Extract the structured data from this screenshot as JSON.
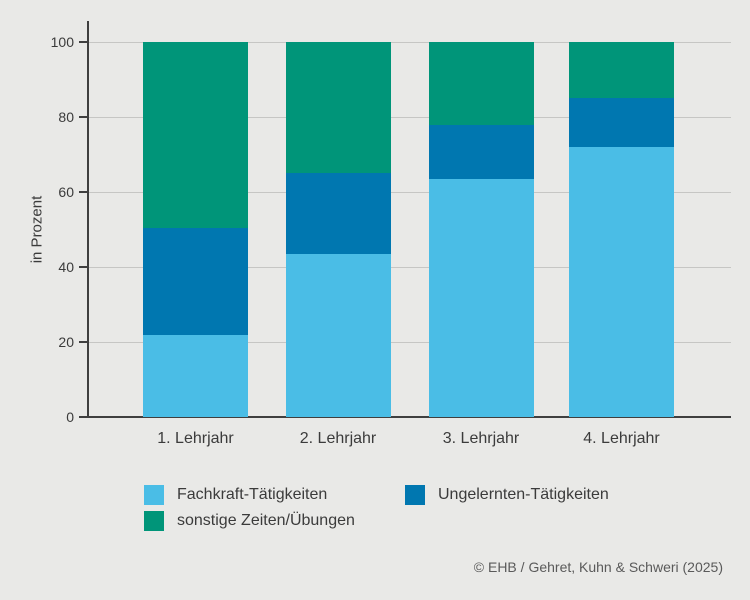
{
  "chart_data": {
    "type": "bar",
    "subtype": "stacked-vertical",
    "categories": [
      "1. Lehrjahr",
      "2. Lehrjahr",
      "3. Lehrjahr",
      "4. Lehrjahr"
    ],
    "series": [
      {
        "name": "Fachkraft-Tätigkeiten",
        "color": "#4abde6",
        "values": [
          22,
          43.5,
          63.5,
          72
        ]
      },
      {
        "name": "Ungelernten-Tätigkeiten",
        "color": "#0077b0",
        "values": [
          28.5,
          21.5,
          14.5,
          13
        ]
      },
      {
        "name": "sonstige Zeiten/Übungen",
        "color": "#009579",
        "values": [
          49.5,
          35,
          22,
          15
        ]
      }
    ],
    "title": "",
    "xlabel": "",
    "ylabel": "in Prozent",
    "ylim": [
      0,
      100
    ],
    "yticks": [
      0,
      20,
      40,
      60,
      80,
      100
    ],
    "grid": true,
    "legend_position": "bottom-left",
    "legend_order": [
      "Fachkraft-Tätigkeiten",
      "Ungelernten-Tätigkeiten",
      "sonstige Zeiten/Übungen"
    ]
  },
  "footer": {
    "credit": "© EHB / Gehret, Kuhn & Schweri (2025)"
  },
  "colors": {
    "background": "#e9e9e7",
    "axis": "#3f3f3f",
    "gridline": "#c6c6c4",
    "text": "#3b3b3b",
    "credit_text": "#5a5a5a"
  }
}
